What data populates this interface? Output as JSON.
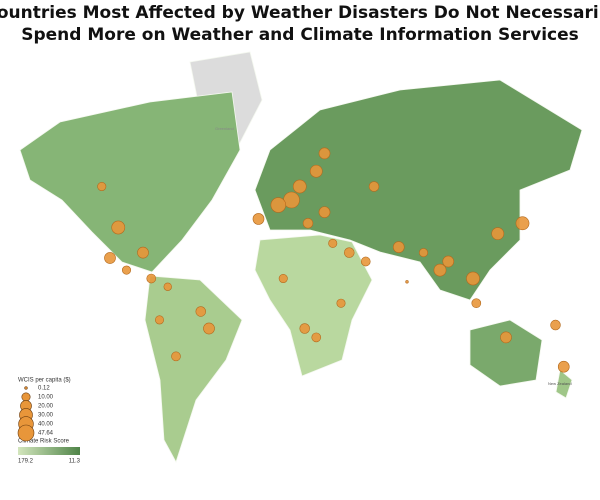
{
  "title_lines": [
    "Countries Most Affected by Weather Disasters Do Not Necessarily",
    "Spend More on Weather and Climate Information Services"
  ],
  "map_labels": [
    "Greenland",
    "New Zealand"
  ],
  "bubbles": {
    "lon": [
      -105,
      -95,
      -80,
      -90,
      -75,
      -100,
      -65,
      -45,
      -70,
      -60,
      -40,
      10,
      2,
      15,
      25,
      30,
      20,
      35,
      45,
      55,
      75,
      100,
      105,
      120,
      140,
      135,
      150,
      170,
      175,
      25,
      40,
      18,
      30,
      5,
      -10,
      60,
      90,
      122,
      80
    ],
    "lat": [
      55,
      38,
      25,
      15,
      10,
      22,
      5,
      -10,
      -15,
      -35,
      -20,
      50,
      48,
      55,
      60,
      45,
      40,
      30,
      25,
      20,
      28,
      15,
      20,
      10,
      -25,
      35,
      40,
      -18,
      -40,
      -25,
      -5,
      -20,
      65,
      10,
      42,
      55,
      25,
      -5,
      8
    ],
    "values": [
      10,
      30,
      20,
      10,
      12,
      20,
      8,
      15,
      10,
      12,
      20,
      47.64,
      40,
      30,
      25,
      20,
      15,
      10,
      15,
      12,
      20,
      25,
      20,
      30,
      20,
      25,
      30,
      15,
      20,
      12,
      10,
      15,
      20,
      10,
      20,
      15,
      10,
      12,
      0.12
    ]
  },
  "legend": {
    "size_title": "WCIS per capita ($)",
    "size_ticks": [
      {
        "value": 0.12,
        "label": "0.12"
      },
      {
        "value": 10,
        "label": "10.00"
      },
      {
        "value": 20,
        "label": "20.00"
      },
      {
        "value": 30,
        "label": "30.00"
      },
      {
        "value": 40,
        "label": "40.00"
      },
      47.64
    ],
    "color_title": "Climate Risk Score",
    "color_range": [
      179.2,
      11.3
    ]
  }
}
